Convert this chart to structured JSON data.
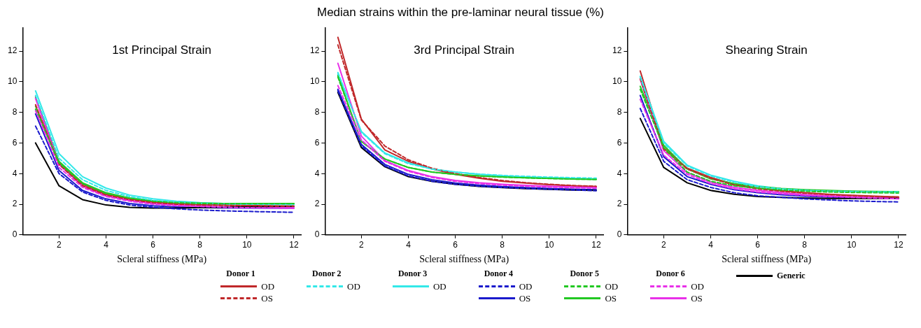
{
  "chart_data": [
    {
      "type": "line",
      "title": "1st Principal Strain",
      "xlabel": "Scleral stiffness (MPa)",
      "x": [
        1,
        2,
        3,
        4,
        5,
        6,
        7,
        8,
        9,
        10,
        11,
        12
      ],
      "xlim": [
        0.45,
        12.3
      ],
      "xticks": [
        2,
        4,
        6,
        8,
        10,
        12
      ],
      "ylim": [
        0,
        13.5
      ],
      "yticks": [
        0,
        2,
        4,
        6,
        8,
        10,
        12
      ],
      "legend": "bottom",
      "annotations": [
        "Donor 1",
        "Donor 2",
        "Donor 3",
        "Donor 4",
        "Donor 5",
        "Donor 6"
      ],
      "series": [
        {
          "name": "OD",
          "color": "#c0282a",
          "line_style": "solid",
          "values": [
            9.0,
            4.7,
            3.3,
            2.65,
            2.35,
            2.15,
            2.05,
            1.98,
            1.95,
            1.92,
            1.9,
            1.88
          ]
        },
        {
          "name": "OS",
          "color": "#c0282a",
          "line_style": "dashed",
          "values": [
            8.5,
            4.6,
            3.2,
            2.6,
            2.3,
            2.1,
            2.0,
            1.95,
            1.92,
            1.9,
            1.88,
            1.87
          ]
        },
        {
          "name": "OD",
          "color": "#33e8e8",
          "line_style": "dashed",
          "values": [
            9.1,
            5.0,
            3.6,
            2.9,
            2.5,
            2.25,
            2.12,
            2.05,
            2.02,
            2.0,
            1.99,
            1.98
          ]
        },
        {
          "name": "OD",
          "color": "#33e8e8",
          "line_style": "solid",
          "values": [
            9.4,
            5.3,
            3.8,
            3.05,
            2.6,
            2.35,
            2.2,
            2.1,
            2.05,
            2.03,
            2.02,
            2.02
          ]
        },
        {
          "name": "OD",
          "color": "#1a1acc",
          "line_style": "dashed",
          "values": [
            7.1,
            4.0,
            2.8,
            2.25,
            1.95,
            1.8,
            1.7,
            1.62,
            1.57,
            1.53,
            1.5,
            1.47
          ]
        },
        {
          "name": "OS",
          "color": "#1a1acc",
          "line_style": "solid",
          "values": [
            7.9,
            4.2,
            2.9,
            2.35,
            2.05,
            1.9,
            1.82,
            1.78,
            1.76,
            1.75,
            1.75,
            1.75
          ]
        },
        {
          "name": "OD",
          "color": "#22c822",
          "line_style": "dashed",
          "values": [
            8.2,
            4.7,
            3.35,
            2.7,
            2.4,
            2.2,
            2.1,
            2.05,
            2.04,
            2.03,
            2.03,
            2.03
          ]
        },
        {
          "name": "OS",
          "color": "#22c822",
          "line_style": "solid",
          "values": [
            8.4,
            4.8,
            3.4,
            2.75,
            2.4,
            2.22,
            2.12,
            2.07,
            2.05,
            2.05,
            2.05,
            2.05
          ]
        },
        {
          "name": "OD",
          "color": "#e830e8",
          "line_style": "dashed",
          "values": [
            8.1,
            4.4,
            3.1,
            2.5,
            2.2,
            2.0,
            1.9,
            1.85,
            1.8,
            1.77,
            1.75,
            1.73
          ]
        },
        {
          "name": "OS",
          "color": "#e830e8",
          "line_style": "solid",
          "values": [
            8.9,
            4.6,
            3.2,
            2.55,
            2.25,
            2.05,
            1.95,
            1.88,
            1.83,
            1.8,
            1.78,
            1.77
          ]
        },
        {
          "name": "Generic",
          "color": "#000000",
          "line_style": "solid",
          "values": [
            6.0,
            3.2,
            2.3,
            1.95,
            1.8,
            1.75,
            1.75,
            1.78,
            1.8,
            1.83,
            1.85,
            1.88
          ]
        }
      ]
    },
    {
      "type": "line",
      "title": "3rd Principal Strain",
      "xlabel": "Scleral stiffness (MPa)",
      "x": [
        1,
        2,
        3,
        4,
        5,
        6,
        7,
        8,
        9,
        10,
        11,
        12
      ],
      "xlim": [
        0.45,
        12.3
      ],
      "xticks": [
        2,
        4,
        6,
        8,
        10,
        12
      ],
      "ylim": [
        0,
        13.5
      ],
      "yticks": [
        0,
        2,
        4,
        6,
        8,
        10,
        12
      ],
      "annotations": [
        "Median strains within the pre-laminar neural tissue (%)"
      ],
      "series": [
        {
          "color": "#c0282a",
          "line_style": "solid",
          "values": [
            12.9,
            7.55,
            5.55,
            4.8,
            4.3,
            3.95,
            3.7,
            3.5,
            3.38,
            3.28,
            3.2,
            3.15
          ]
        },
        {
          "color": "#c0282a",
          "line_style": "dashed",
          "values": [
            12.4,
            7.5,
            5.8,
            4.9,
            4.35,
            4.0,
            3.75,
            3.55,
            3.4,
            3.3,
            3.22,
            3.17
          ]
        },
        {
          "color": "#33e8e8",
          "line_style": "dashed",
          "values": [
            10.6,
            6.7,
            5.3,
            4.65,
            4.3,
            4.1,
            3.97,
            3.88,
            3.82,
            3.77,
            3.73,
            3.7
          ]
        },
        {
          "color": "#33e8e8",
          "line_style": "solid",
          "values": [
            10.5,
            6.75,
            5.35,
            4.7,
            4.3,
            4.1,
            3.95,
            3.85,
            3.77,
            3.72,
            3.68,
            3.63
          ]
        },
        {
          "color": "#1a1acc",
          "line_style": "dashed",
          "values": [
            9.4,
            5.8,
            4.5,
            3.85,
            3.5,
            3.3,
            3.18,
            3.1,
            3.03,
            2.98,
            2.93,
            2.88
          ]
        },
        {
          "color": "#1a1acc",
          "line_style": "solid",
          "values": [
            9.5,
            5.9,
            4.6,
            3.95,
            3.6,
            3.38,
            3.25,
            3.15,
            3.08,
            3.03,
            2.98,
            2.95
          ]
        },
        {
          "color": "#22c822",
          "line_style": "dashed",
          "values": [
            10.3,
            6.1,
            4.95,
            4.4,
            4.1,
            3.95,
            3.85,
            3.77,
            3.72,
            3.68,
            3.64,
            3.62
          ]
        },
        {
          "color": "#22c822",
          "line_style": "solid",
          "values": [
            10.4,
            6.1,
            4.95,
            4.4,
            4.1,
            3.95,
            3.85,
            3.78,
            3.73,
            3.69,
            3.65,
            3.62
          ]
        },
        {
          "color": "#e830e8",
          "line_style": "dashed",
          "values": [
            9.75,
            6.2,
            4.8,
            4.15,
            3.75,
            3.5,
            3.35,
            3.25,
            3.18,
            3.12,
            3.08,
            3.05
          ]
        },
        {
          "color": "#e830e8",
          "line_style": "solid",
          "values": [
            11.2,
            6.45,
            4.85,
            4.2,
            3.8,
            3.55,
            3.4,
            3.3,
            3.23,
            3.18,
            3.13,
            3.1
          ]
        },
        {
          "color": "#000000",
          "line_style": "solid",
          "values": [
            9.3,
            5.7,
            4.45,
            3.8,
            3.5,
            3.3,
            3.17,
            3.08,
            3.02,
            2.97,
            2.93,
            2.9
          ]
        }
      ]
    },
    {
      "type": "line",
      "title": "Shearing Strain",
      "xlabel": "Scleral stiffness (MPa)",
      "x": [
        1,
        2,
        3,
        4,
        5,
        6,
        7,
        8,
        9,
        10,
        11,
        12
      ],
      "xlim": [
        0.45,
        12.3
      ],
      "xticks": [
        2,
        4,
        6,
        8,
        10,
        12
      ],
      "ylim": [
        0,
        13.5
      ],
      "yticks": [
        0,
        2,
        4,
        6,
        8,
        10,
        12
      ],
      "series": [
        {
          "color": "#c0282a",
          "line_style": "solid",
          "values": [
            10.7,
            5.7,
            4.35,
            3.75,
            3.3,
            3.05,
            2.88,
            2.75,
            2.65,
            2.58,
            2.52,
            2.48
          ]
        },
        {
          "color": "#c0282a",
          "line_style": "dashed",
          "values": [
            10.2,
            5.6,
            4.3,
            3.7,
            3.25,
            3.0,
            2.85,
            2.72,
            2.63,
            2.56,
            2.5,
            2.45
          ]
        },
        {
          "color": "#33e8e8",
          "line_style": "dashed",
          "values": [
            10.3,
            6.0,
            4.5,
            3.85,
            3.45,
            3.15,
            3.0,
            2.9,
            2.85,
            2.82,
            2.8,
            2.8
          ]
        },
        {
          "color": "#33e8e8",
          "line_style": "solid",
          "values": [
            10.35,
            6.1,
            4.55,
            3.9,
            3.5,
            3.2,
            3.02,
            2.92,
            2.87,
            2.83,
            2.81,
            2.8
          ]
        },
        {
          "color": "#1a1acc",
          "line_style": "dashed",
          "values": [
            8.25,
            4.8,
            3.6,
            3.1,
            2.75,
            2.55,
            2.45,
            2.35,
            2.28,
            2.22,
            2.18,
            2.15
          ]
        },
        {
          "color": "#1a1acc",
          "line_style": "solid",
          "values": [
            9.1,
            5.1,
            3.8,
            3.3,
            2.95,
            2.75,
            2.62,
            2.52,
            2.47,
            2.43,
            2.4,
            2.38
          ]
        },
        {
          "color": "#22c822",
          "line_style": "dashed",
          "values": [
            9.5,
            5.7,
            4.1,
            3.5,
            3.2,
            3.05,
            2.93,
            2.85,
            2.8,
            2.77,
            2.75,
            2.73
          ]
        },
        {
          "color": "#22c822",
          "line_style": "solid",
          "values": [
            9.7,
            5.85,
            4.3,
            3.65,
            3.35,
            3.15,
            3.03,
            2.95,
            2.9,
            2.86,
            2.83,
            2.82
          ]
        },
        {
          "color": "#e830e8",
          "line_style": "dashed",
          "values": [
            8.85,
            5.2,
            3.95,
            3.35,
            3.0,
            2.8,
            2.68,
            2.58,
            2.5,
            2.45,
            2.4,
            2.35
          ]
        },
        {
          "color": "#e830e8",
          "line_style": "solid",
          "values": [
            10.15,
            5.5,
            4.05,
            3.45,
            3.1,
            2.9,
            2.75,
            2.63,
            2.55,
            2.48,
            2.43,
            2.4
          ]
        },
        {
          "color": "#000000",
          "line_style": "solid",
          "values": [
            7.6,
            4.4,
            3.4,
            2.9,
            2.65,
            2.5,
            2.45,
            2.4,
            2.38,
            2.38,
            2.38,
            2.4
          ]
        }
      ]
    }
  ]
}
